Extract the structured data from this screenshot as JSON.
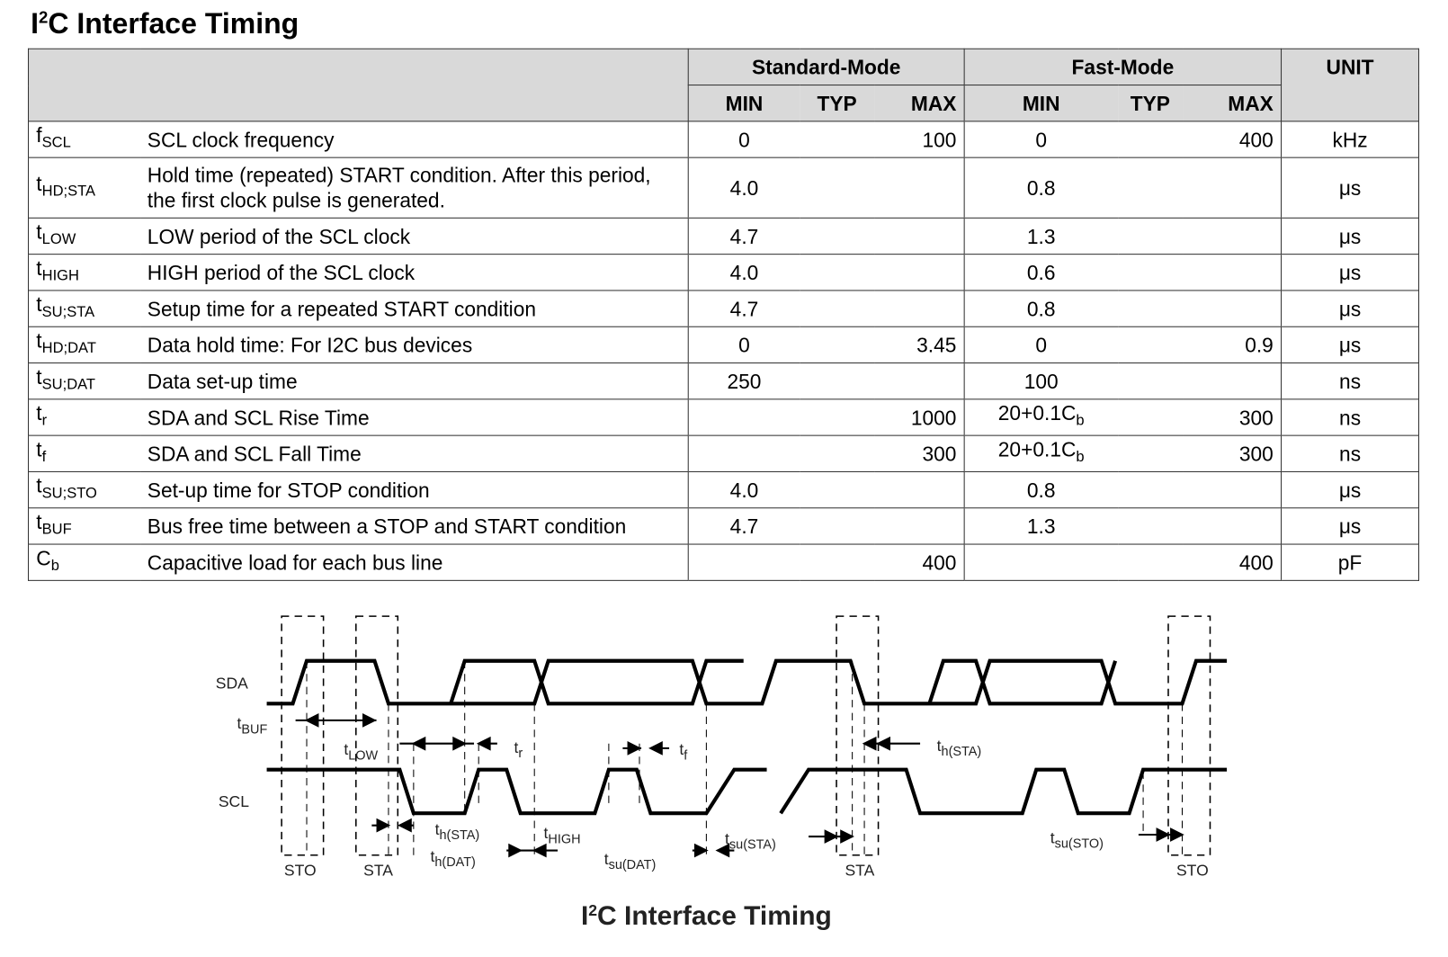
{
  "title": {
    "pre": "I",
    "sup": "2",
    "post": "C Interface Timing"
  },
  "table": {
    "header": {
      "standard": "Standard-Mode",
      "fast": "Fast-Mode",
      "unit": "UNIT",
      "subheaders": [
        "MIN",
        "TYP",
        "MAX",
        "MIN",
        "TYP",
        "MAX"
      ]
    },
    "rows": [
      {
        "symbol": {
          "main": "f",
          "sub": "SCL"
        },
        "description": "SCL clock frequency",
        "values": [
          "0",
          null,
          "100",
          "0",
          null,
          "400"
        ],
        "unit": "kHz"
      },
      {
        "symbol": {
          "main": "t",
          "sub": "HD;STA"
        },
        "description": "Hold time (repeated) START condition. After this period, the first clock pulse is generated.",
        "values": [
          "4.0",
          null,
          null,
          "0.8",
          null,
          null
        ],
        "unit": "μs"
      },
      {
        "symbol": {
          "main": "t",
          "sub": "LOW"
        },
        "description": "LOW period of the SCL clock",
        "values": [
          "4.7",
          null,
          null,
          "1.3",
          null,
          null
        ],
        "unit": "μs"
      },
      {
        "symbol": {
          "main": "t",
          "sub": "HIGH"
        },
        "description": "HIGH period of the SCL clock",
        "values": [
          "4.0",
          null,
          null,
          "0.6",
          null,
          null
        ],
        "unit": "μs"
      },
      {
        "symbol": {
          "main": "t",
          "sub": "SU;STA"
        },
        "description": "Setup time for a repeated START condition",
        "values": [
          "4.7",
          null,
          null,
          "0.8",
          null,
          null
        ],
        "unit": "μs"
      },
      {
        "symbol": {
          "main": "t",
          "sub": "HD;DAT"
        },
        "description": "Data hold time: For I2C bus devices",
        "values": [
          "0",
          null,
          "3.45",
          "0",
          null,
          "0.9"
        ],
        "unit": "μs"
      },
      {
        "symbol": {
          "main": "t",
          "sub": "SU;DAT"
        },
        "description": "Data set-up time",
        "values": [
          "250",
          null,
          null,
          "100",
          null,
          null
        ],
        "unit": "ns"
      },
      {
        "symbol": {
          "main": "t",
          "sub": "r"
        },
        "description": "SDA and SCL Rise Time",
        "values": [
          null,
          null,
          "1000",
          {
            "main": "20+0.1C",
            "sub": "b"
          },
          null,
          "300"
        ],
        "unit": "ns"
      },
      {
        "symbol": {
          "main": "t",
          "sub": "f"
        },
        "description": "SDA and SCL Fall Time",
        "values": [
          null,
          null,
          "300",
          {
            "main": "20+0.1C",
            "sub": "b"
          },
          null,
          "300"
        ],
        "unit": "ns"
      },
      {
        "symbol": {
          "main": "t",
          "sub": "SU;STO"
        },
        "description": "Set-up time for STOP condition",
        "values": [
          "4.0",
          null,
          null,
          "0.8",
          null,
          null
        ],
        "unit": "μs"
      },
      {
        "symbol": {
          "main": "t",
          "sub": "BUF"
        },
        "description": "Bus free time between a STOP and START condition",
        "values": [
          "4.7",
          null,
          null,
          "1.3",
          null,
          null
        ],
        "unit": "μs"
      },
      {
        "symbol": {
          "main": "C",
          "sub": "b"
        },
        "description": "Capacitive load for each bus line",
        "values": [
          null,
          null,
          "400",
          null,
          null,
          "400"
        ],
        "unit": "pF"
      }
    ]
  },
  "diagram": {
    "signals": [
      "SDA",
      "SCL"
    ],
    "labels": [
      {
        "main": "t",
        "sub": "BUF"
      },
      {
        "main": "t",
        "sub": "LOW"
      },
      {
        "main": "t",
        "sub": "r"
      },
      {
        "main": "t",
        "sub": "f"
      },
      {
        "main": "t",
        "sub": "h(STA)"
      },
      {
        "main": "t",
        "sub": "h(STA)"
      },
      {
        "main": "t",
        "sub": "HIGH"
      },
      {
        "main": "t",
        "sub": "h(DAT)"
      },
      {
        "main": "t",
        "sub": "su(DAT)"
      },
      {
        "main": "t",
        "sub": "su(STA)"
      },
      {
        "main": "t",
        "sub": "su(STO)"
      }
    ],
    "markers": [
      "STO",
      "STA",
      "STA",
      "STO"
    ],
    "caption": {
      "pre": "I",
      "sup": "2",
      "post": "C Interface Timing"
    }
  }
}
